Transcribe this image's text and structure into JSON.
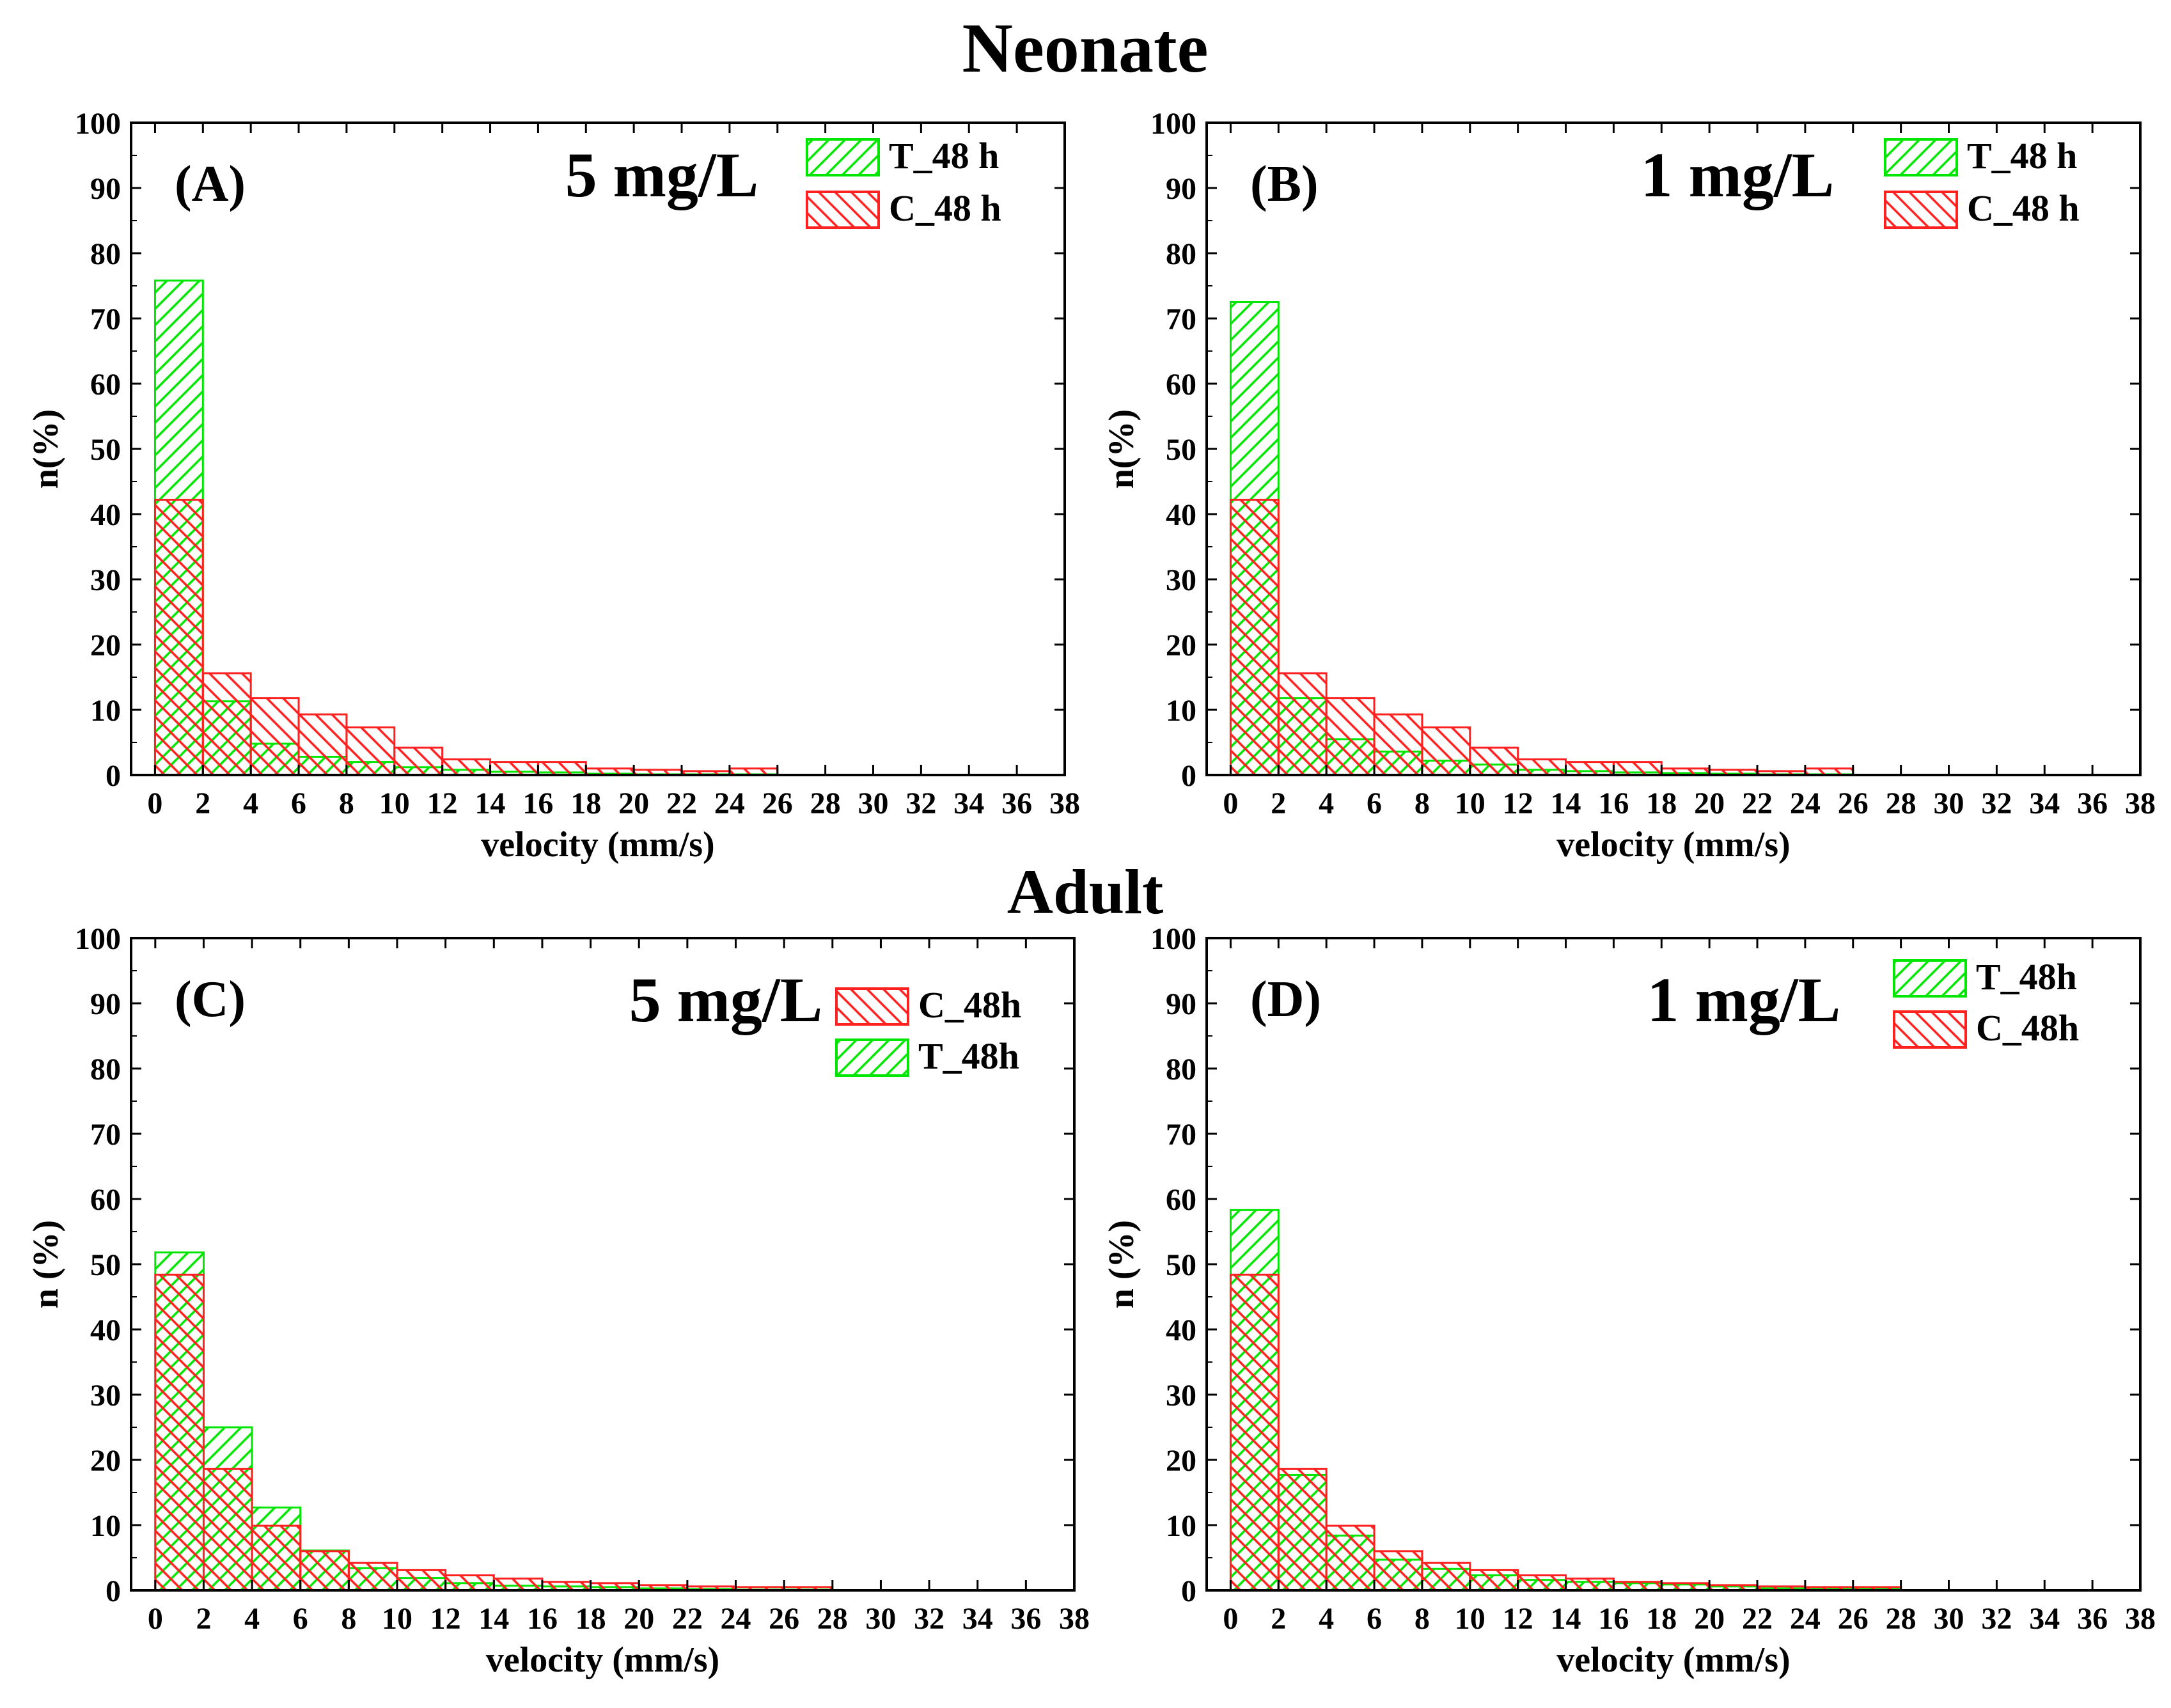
{
  "section_titles": {
    "neonate": "Neonate",
    "adult": "Adult"
  },
  "colors": {
    "treated": "#00e600",
    "control": "#ff2020",
    "axis": "#000000"
  },
  "chart_data": [
    {
      "type": "bar",
      "panel_label": "(A)",
      "title": "5 mg/L",
      "xlabel": "velocity (mm/s)",
      "ylabel": "n(%)",
      "xlim": [
        -1,
        38
      ],
      "ylim": [
        0,
        100
      ],
      "xticks": [
        0,
        2,
        4,
        6,
        8,
        10,
        12,
        14,
        16,
        18,
        20,
        22,
        24,
        26,
        28,
        30,
        32,
        34,
        36,
        38
      ],
      "yticks": [
        0,
        10,
        20,
        30,
        40,
        50,
        60,
        70,
        80,
        90,
        100
      ],
      "bin_start": 0,
      "bin_width": 2,
      "legend_position": "top-right",
      "series": [
        {
          "name": "T_48 h",
          "color": "treated",
          "values": [
            75.8,
            11.3,
            4.8,
            2.8,
            2.0,
            1.2,
            0.8,
            0.5,
            0.4,
            0.2,
            0.1,
            0.1,
            0.1
          ]
        },
        {
          "name": "C_48 h",
          "color": "control",
          "values": [
            42.2,
            15.6,
            11.8,
            9.3,
            7.3,
            4.2,
            2.4,
            2.0,
            2.0,
            1.0,
            0.8,
            0.6,
            1.0
          ]
        }
      ]
    },
    {
      "type": "bar",
      "panel_label": "(B)",
      "title": "1 mg/L",
      "xlabel": "velocity (mm/s)",
      "ylabel": "n(%)",
      "xlim": [
        -1,
        38
      ],
      "ylim": [
        0,
        100
      ],
      "xticks": [
        0,
        2,
        4,
        6,
        8,
        10,
        12,
        14,
        16,
        18,
        20,
        22,
        24,
        26,
        28,
        30,
        32,
        34,
        36,
        38
      ],
      "yticks": [
        0,
        10,
        20,
        30,
        40,
        50,
        60,
        70,
        80,
        90,
        100
      ],
      "bin_start": 0,
      "bin_width": 2,
      "legend_position": "top-right",
      "series": [
        {
          "name": "T_48 h",
          "color": "treated",
          "values": [
            72.5,
            11.8,
            5.5,
            3.6,
            2.2,
            1.6,
            0.8,
            0.6,
            0.4,
            0.3,
            0.2,
            0.1,
            0.1
          ]
        },
        {
          "name": "C_48 h",
          "color": "control",
          "values": [
            42.2,
            15.6,
            11.8,
            9.3,
            7.3,
            4.2,
            2.4,
            2.0,
            2.0,
            1.0,
            0.8,
            0.6,
            1.0
          ]
        }
      ]
    },
    {
      "type": "bar",
      "panel_label": "(C)",
      "title": "5 mg/L",
      "xlabel": "velocity (mm/s)",
      "ylabel": "n (%)",
      "xlim": [
        -1,
        38
      ],
      "ylim": [
        0,
        100
      ],
      "xticks": [
        0,
        2,
        4,
        6,
        8,
        10,
        12,
        14,
        16,
        18,
        20,
        22,
        24,
        26,
        28,
        30,
        32,
        34,
        36,
        38
      ],
      "yticks": [
        0,
        10,
        20,
        30,
        40,
        50,
        60,
        70,
        80,
        90,
        100
      ],
      "bin_start": 0,
      "bin_width": 2,
      "legend_position": "top-right",
      "series": [
        {
          "name": "C_48h",
          "color": "control",
          "values": [
            48.4,
            18.6,
            9.9,
            6.0,
            4.2,
            3.1,
            2.3,
            1.8,
            1.3,
            1.1,
            0.8,
            0.6,
            0.5,
            0.5
          ]
        },
        {
          "name": "T_48h",
          "color": "treated",
          "values": [
            51.8,
            25.0,
            12.7,
            6.1,
            3.4,
            1.9,
            1.1,
            0.7,
            0.6,
            0.5,
            0.3,
            0.2,
            0.1,
            0.1
          ]
        }
      ]
    },
    {
      "type": "bar",
      "panel_label": "(D)",
      "title": "1 mg/L",
      "xlabel": "velocity (mm/s)",
      "ylabel": "n (%)",
      "xlim": [
        -1,
        38
      ],
      "ylim": [
        0,
        100
      ],
      "xticks": [
        0,
        2,
        4,
        6,
        8,
        10,
        12,
        14,
        16,
        18,
        20,
        22,
        24,
        26,
        28,
        30,
        32,
        34,
        36,
        38
      ],
      "yticks": [
        0,
        10,
        20,
        30,
        40,
        50,
        60,
        70,
        80,
        90,
        100
      ],
      "bin_start": 0,
      "bin_width": 2,
      "legend_position": "top-right",
      "series": [
        {
          "name": "T_48h",
          "color": "treated",
          "values": [
            58.3,
            17.7,
            8.4,
            4.7,
            3.3,
            2.3,
            1.6,
            1.3,
            1.1,
            0.9,
            0.6,
            0.3,
            0.2,
            0.2
          ]
        },
        {
          "name": "C_48h",
          "color": "control",
          "values": [
            48.4,
            18.6,
            9.9,
            6.0,
            4.2,
            3.1,
            2.3,
            1.8,
            1.3,
            1.1,
            0.8,
            0.6,
            0.5,
            0.5
          ]
        }
      ]
    }
  ]
}
